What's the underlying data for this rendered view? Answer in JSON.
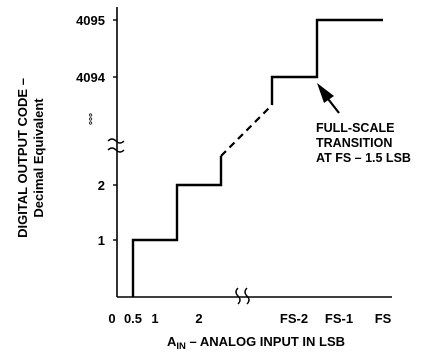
{
  "chart_data": {
    "type": "line",
    "subtype": "step-transfer-function",
    "x_ticks": [
      "0",
      "0.5",
      "1",
      "2",
      "FS-2",
      "FS-1",
      "FS"
    ],
    "y_ticks": [
      "1",
      "2",
      "4094",
      "4095"
    ],
    "xlabel_main": "A",
    "xlabel_sub": "IN",
    "xlabel_rest": " – ANALOG INPUT IN LSB",
    "ylabel_line1": "DIGITAL OUTPUT CODE –",
    "ylabel_line2": "Decimal Equivalent",
    "y_ellipsis": "°°°",
    "annotation": [
      "FULL-SCALE",
      "TRANSITION",
      "AT FS – 1.5 LSB"
    ],
    "series": [
      {
        "steps_low": [
          {
            "x_from": "0.5",
            "x_to": "1.5",
            "code": 1
          },
          {
            "x_from": "1.5",
            "x_to": "2.5",
            "code": 2
          }
        ],
        "steps_high": [
          {
            "x_from": "FS-2.5",
            "x_to": "FS-1.5",
            "code": 4094
          },
          {
            "x_from": "FS-1.5",
            "x_to": "FS",
            "code": 4095
          }
        ],
        "gap_style": "dashed"
      }
    ],
    "axis_breaks": [
      "x",
      "y"
    ],
    "grid": false
  }
}
